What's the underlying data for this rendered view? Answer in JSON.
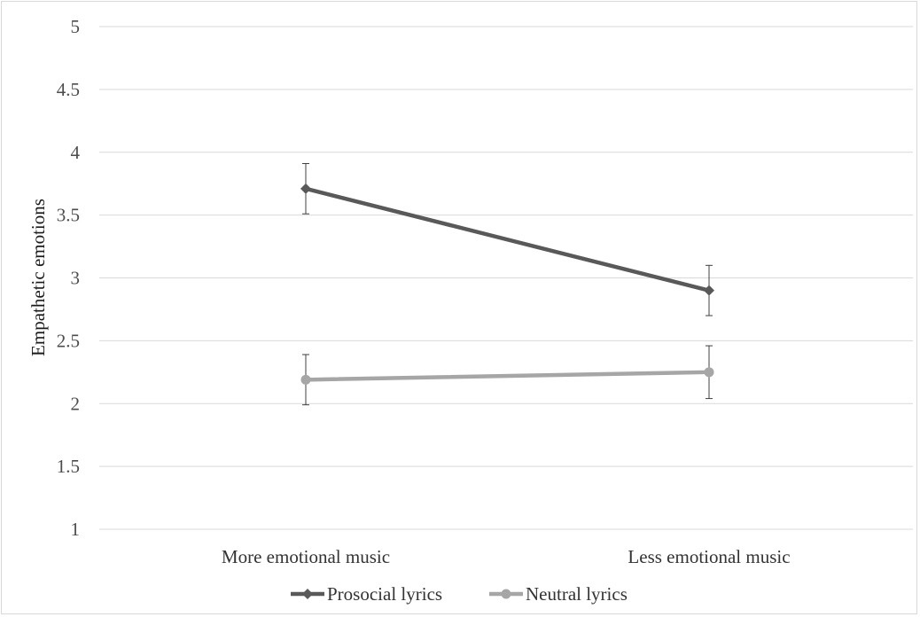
{
  "chart_data": {
    "type": "line",
    "title": "",
    "xlabel": "",
    "ylabel": "Empathetic emotions",
    "categories": [
      "More emotional music",
      "Less emotional music"
    ],
    "ylim": [
      1,
      5
    ],
    "yticks": [
      1,
      1.5,
      2,
      2.5,
      3,
      3.5,
      4,
      4.5,
      5
    ],
    "ytick_labels": [
      "1",
      "1.5",
      "2",
      "2.5",
      "3",
      "3.5",
      "4",
      "4.5",
      "5"
    ],
    "grid": true,
    "legend_position": "bottom",
    "series": [
      {
        "name": "Prosocial lyrics",
        "values": [
          3.71,
          2.9
        ],
        "error": [
          0.2,
          0.2
        ],
        "color": "#595959",
        "marker": "diamond"
      },
      {
        "name": "Neutral lyrics",
        "values": [
          2.19,
          2.25
        ],
        "error": [
          0.2,
          0.21
        ],
        "color": "#a6a6a6",
        "marker": "circle"
      }
    ]
  }
}
